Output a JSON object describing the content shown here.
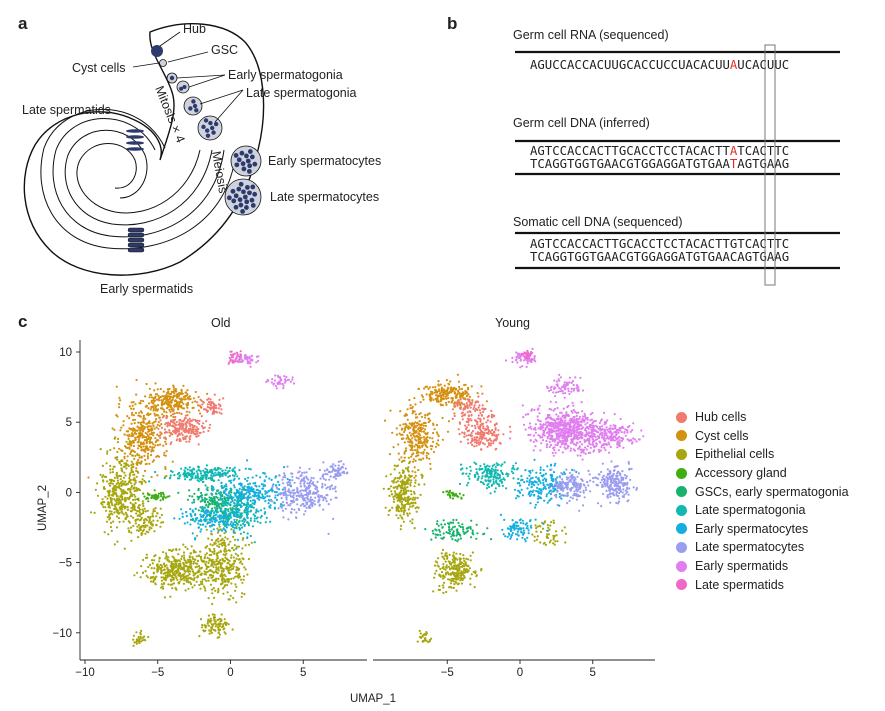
{
  "panels": {
    "a": "a",
    "b": "b",
    "c": "c"
  },
  "panel_a": {
    "labels": {
      "hub": "Hub",
      "gsc": "GSC",
      "cyst": "Cyst cells",
      "early_spg": "Early spermatogonia",
      "late_spg": "Late spermatogonia",
      "mitosis": "Mitosis × 4",
      "meiosis": "Meiosis",
      "early_spc": "Early spermatocytes",
      "late_spc": "Late spermatocytes",
      "late_spd": "Late spermatids",
      "early_spd": "Early spermatids"
    },
    "colors": {
      "cell_fill": "#2e3a6b",
      "cyst_fill": "#cfd3de",
      "outline": "#111111"
    }
  },
  "panel_b": {
    "germ_rna_title": "Germ cell RNA (sequenced)",
    "germ_rna_seq_pre": "AGUCCACCACUUGCACCUCCUACACUU",
    "germ_rna_seq_hl": "A",
    "germ_rna_seq_post": "UCACUUC",
    "germ_dna_title": "Germ cell DNA (inferred)",
    "germ_dna_top_pre": "AGTCCACCACTTGCACCTCCTACACTT",
    "germ_dna_top_hl": "A",
    "germ_dna_top_post": "TCACTTC",
    "germ_dna_bot_pre": "TCAGGTGGTGAACGTGGAGGATGTGAA",
    "germ_dna_bot_hl": "T",
    "germ_dna_bot_post": "AGTGAAG",
    "somatic_title": "Somatic cell DNA (sequenced)",
    "somatic_top": "AGTCCACCACTTGCACCTCCTACACTTGTCACTTC",
    "somatic_bot": "TCAGGTGGTGAACGTGGAGGATGTGAACAGTGAAG",
    "highlight_color": "#e0302a"
  },
  "chart_data": {
    "type": "scatter",
    "xlabel": "UMAP_1",
    "ylabel": "UMAP_2",
    "xlim": [
      -10,
      9
    ],
    "ylim": [
      -12,
      11
    ],
    "xticks": [
      -10,
      -5,
      0,
      5
    ],
    "yticks": [
      10,
      5,
      0,
      -5,
      -10
    ],
    "facets": [
      "Old",
      "Young"
    ],
    "legend_position": "right",
    "series": [
      {
        "name": "Hub cells",
        "color": "#f07a6f"
      },
      {
        "name": "Cyst cells",
        "color": "#d4900f"
      },
      {
        "name": "Epithelial cells",
        "color": "#a6a60e"
      },
      {
        "name": "Accessory gland",
        "color": "#3fae14"
      },
      {
        "name": "GSCs, early spermatogonia",
        "color": "#17b26b"
      },
      {
        "name": "Late spermatogonia",
        "color": "#10b8b0"
      },
      {
        "name": "Early spermatocytes",
        "color": "#14aee0"
      },
      {
        "name": "Late spermatocytes",
        "color": "#9a9cf0"
      },
      {
        "name": "Early spermatids",
        "color": "#e07ef0"
      },
      {
        "name": "Late spermatids",
        "color": "#f069c8"
      }
    ]
  }
}
